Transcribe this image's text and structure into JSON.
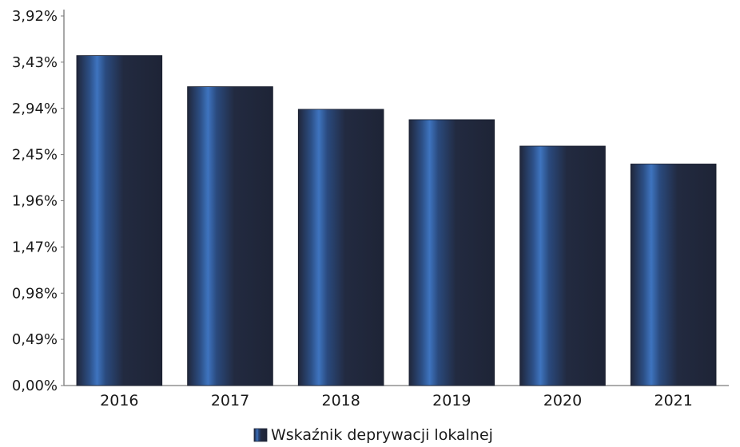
{
  "chart_data": {
    "type": "bar",
    "categories": [
      "2016",
      "2017",
      "2018",
      "2019",
      "2020",
      "2021"
    ],
    "series": [
      {
        "name": "Wskaźnik deprywacji lokalnej",
        "values": [
          3.5,
          3.17,
          2.93,
          2.82,
          2.54,
          2.35
        ]
      }
    ],
    "y_ticks": [
      "0,00%",
      "0,49%",
      "0,98%",
      "1,47%",
      "1,96%",
      "2,45%",
      "2,94%",
      "3,43%",
      "3,92%"
    ],
    "ylim": [
      0,
      3.92
    ],
    "unit": "%",
    "grid": false,
    "legend": "bottom-center",
    "colors": {
      "bar_dark": "#20263a",
      "bar_highlight": "#3e74bf",
      "axis": "#7a7a7a"
    }
  }
}
